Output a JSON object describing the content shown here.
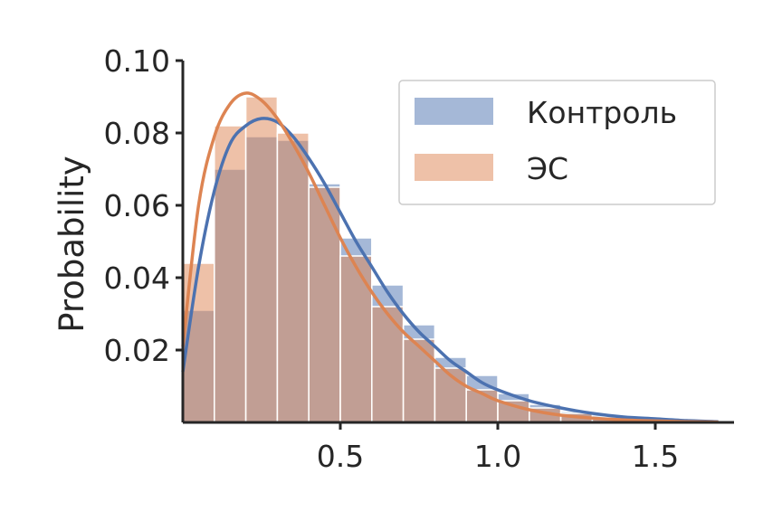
{
  "chart_data": {
    "type": "bar",
    "title": "",
    "xlabel": "",
    "ylabel": "Probability",
    "xlim": [
      0.0,
      1.75
    ],
    "ylim": [
      0.0,
      0.1
    ],
    "x_ticks": [
      0.5,
      1.0,
      1.5
    ],
    "x_tick_labels": [
      "0.5",
      "1.0",
      "1.5"
    ],
    "y_ticks": [
      0.02,
      0.04,
      0.06,
      0.08,
      0.1
    ],
    "y_tick_labels": [
      "0.02",
      "0.04",
      "0.06",
      "0.08",
      "0.10"
    ],
    "grid": false,
    "legend_position": "top-right",
    "bin_edges": [
      0.0,
      0.1,
      0.2,
      0.3,
      0.4,
      0.5,
      0.6,
      0.7,
      0.8,
      0.9,
      1.0,
      1.1,
      1.2,
      1.3,
      1.4,
      1.5,
      1.6,
      1.7
    ],
    "series": [
      {
        "name": "Контроль",
        "color": "#4c72b0",
        "values": [
          0.031,
          0.07,
          0.079,
          0.078,
          0.066,
          0.051,
          0.038,
          0.027,
          0.018,
          0.013,
          0.008,
          0.005,
          0.003,
          0.002,
          0.0013,
          0.0008,
          0.0005
        ],
        "kde": {
          "x": [
            0.0,
            0.05,
            0.1,
            0.15,
            0.2,
            0.25,
            0.3,
            0.35,
            0.4,
            0.45,
            0.5,
            0.55,
            0.6,
            0.65,
            0.7,
            0.75,
            0.8,
            0.85,
            0.9,
            0.95,
            1.0,
            1.1,
            1.2,
            1.3,
            1.4,
            1.5,
            1.6,
            1.7
          ],
          "y": [
            0.014,
            0.043,
            0.064,
            0.077,
            0.082,
            0.084,
            0.083,
            0.079,
            0.073,
            0.066,
            0.058,
            0.05,
            0.043,
            0.036,
            0.03,
            0.025,
            0.021,
            0.017,
            0.014,
            0.011,
            0.009,
            0.006,
            0.004,
            0.0025,
            0.0015,
            0.001,
            0.0005,
            0.0002
          ]
        }
      },
      {
        "name": "ЭС",
        "color": "#dd8452",
        "values": [
          0.044,
          0.082,
          0.09,
          0.08,
          0.065,
          0.046,
          0.032,
          0.023,
          0.015,
          0.009,
          0.006,
          0.004,
          0.0025,
          0.0015,
          0.0009,
          0.0005,
          0.0003
        ],
        "kde": {
          "x": [
            0.0,
            0.05,
            0.1,
            0.15,
            0.2,
            0.25,
            0.3,
            0.35,
            0.4,
            0.45,
            0.5,
            0.55,
            0.6,
            0.65,
            0.7,
            0.75,
            0.8,
            0.85,
            0.9,
            0.95,
            1.0,
            1.1,
            1.2,
            1.3,
            1.4,
            1.5,
            1.6,
            1.7
          ],
          "y": [
            0.021,
            0.06,
            0.079,
            0.088,
            0.091,
            0.089,
            0.084,
            0.077,
            0.069,
            0.06,
            0.051,
            0.043,
            0.036,
            0.03,
            0.025,
            0.021,
            0.017,
            0.013,
            0.01,
            0.008,
            0.006,
            0.0035,
            0.002,
            0.0012,
            0.0007,
            0.0004,
            0.0002,
            0.0001
          ]
        }
      }
    ]
  }
}
